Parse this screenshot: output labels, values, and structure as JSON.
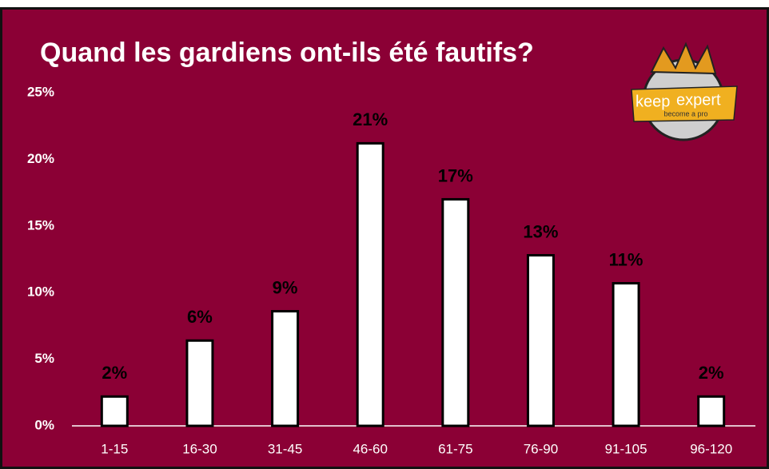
{
  "chart_data": {
    "type": "bar",
    "title": "Quand les gardiens ont-ils été fautifs?",
    "categories": [
      "1-15",
      "16-30",
      "31-45",
      "46-60",
      "61-75",
      "76-90",
      "91-105",
      "96-120"
    ],
    "values": [
      2.2,
      6.4,
      8.6,
      21.2,
      17.0,
      12.8,
      10.7,
      2.2
    ],
    "value_labels": [
      "2%",
      "6%",
      "9%",
      "21%",
      "17%",
      "13%",
      "11%",
      "2%"
    ],
    "color": "#ffffff",
    "ylim": [
      0,
      25
    ],
    "yticks": [
      {
        "value": 0,
        "label": "0%"
      },
      {
        "value": 5,
        "label": "5%"
      },
      {
        "value": 10,
        "label": "10%"
      },
      {
        "value": 15,
        "label": "15%"
      },
      {
        "value": 20,
        "label": "20%"
      },
      {
        "value": 25,
        "label": "25%"
      }
    ],
    "grid": false,
    "logo": {
      "brand_left": "keep",
      "brand_right": "expert",
      "tagline": "become a pro"
    }
  }
}
